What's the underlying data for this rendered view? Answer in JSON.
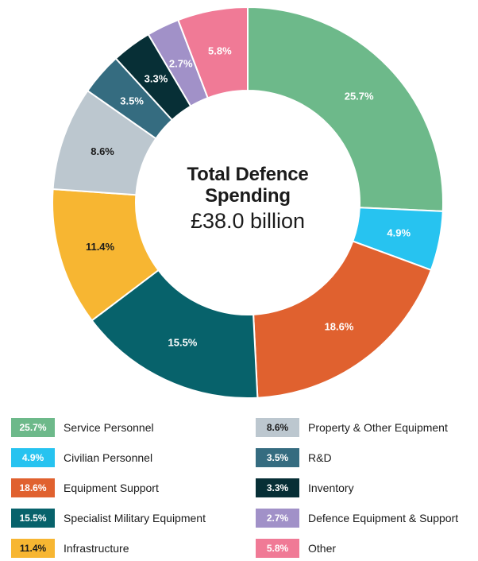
{
  "chart_data": {
    "type": "pie",
    "donut": true,
    "center_title": "Total Defence Spending",
    "center_value": "£38.0 billion",
    "categories": [
      "Service Personnel",
      "Civilian Personnel",
      "Equipment Support",
      "Specialist Military Equipment",
      "Infrastructure",
      "Property & Other Equipment",
      "R&D",
      "Inventory",
      "Defence Equipment & Support",
      "Other"
    ],
    "values": [
      25.7,
      4.9,
      18.6,
      15.5,
      11.4,
      8.6,
      3.5,
      3.3,
      2.7,
      5.8
    ],
    "value_labels": [
      "25.7%",
      "4.9%",
      "18.6%",
      "15.5%",
      "11.4%",
      "8.6%",
      "3.5%",
      "3.3%",
      "2.7%",
      "5.8%"
    ],
    "colors": [
      "#6db98a",
      "#27c3f0",
      "#e0612f",
      "#07626b",
      "#f7b632",
      "#bcc7cf",
      "#356c80",
      "#072f36",
      "#a191c8",
      "#f07a96"
    ],
    "label_colors": [
      "#ffffff",
      "#ffffff",
      "#ffffff",
      "#ffffff",
      "#1b1b1b",
      "#1b1b1b",
      "#ffffff",
      "#ffffff",
      "#ffffff",
      "#ffffff"
    ],
    "direction": "clockwise",
    "start_angle": "top",
    "legend_position": "bottom"
  }
}
